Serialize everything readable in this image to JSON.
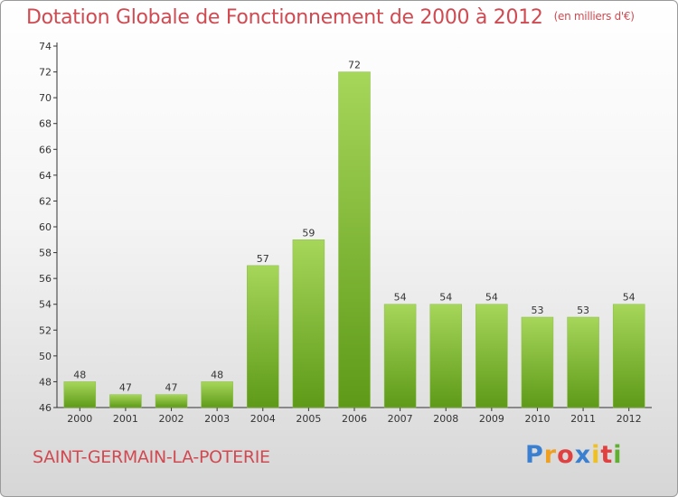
{
  "title": "Dotation Globale de Fonctionnement de 2000 à 2012",
  "unit": "(en milliers d'€)",
  "town": "SAINT-GERMAIN-LA-POTERIE",
  "logo": {
    "text": "Proxiti",
    "letters": [
      "P",
      "r",
      "o",
      "x",
      "i",
      "t",
      "i"
    ],
    "colors": [
      "#3a7fd0",
      "#f0a020",
      "#e04040",
      "#3a7fd0",
      "#f0c020",
      "#e04040",
      "#60b030"
    ]
  },
  "colors": {
    "bar_light": "#a6d65a",
    "bar_dark": "#5e9a18",
    "text": "#d04a52"
  },
  "chart_data": {
    "type": "bar",
    "categories": [
      "2000",
      "2001",
      "2002",
      "2003",
      "2004",
      "2005",
      "2006",
      "2007",
      "2008",
      "2009",
      "2010",
      "2011",
      "2012"
    ],
    "values": [
      48,
      47,
      47,
      48,
      57,
      59,
      72,
      54,
      54,
      54,
      53,
      53,
      54
    ],
    "ylim": [
      46,
      74
    ],
    "yticks": [
      46,
      48,
      50,
      52,
      54,
      56,
      58,
      60,
      62,
      64,
      66,
      68,
      70,
      72,
      74
    ],
    "grid": false
  }
}
